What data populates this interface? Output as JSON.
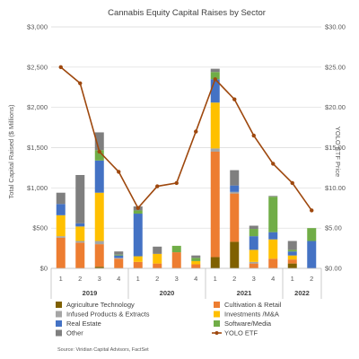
{
  "chart_data": {
    "type": "bar",
    "title": "Cannabis Equity Capital Raises by Sector",
    "ylabel": "Total Capital Raised ($ Millions)",
    "y2label": "YOLO ETF Price",
    "ylim": [
      0,
      3000
    ],
    "y2lim": [
      0,
      30
    ],
    "yticks": [
      "$0",
      "$500",
      "$1,000",
      "$1,500",
      "$2,000",
      "$2,500",
      "$3,000"
    ],
    "y2ticks": [
      "$0.00",
      "$5.00",
      "$10.00",
      "$15.00",
      "$20.00",
      "$25.00",
      "$30.00"
    ],
    "categories": [
      "1",
      "2",
      "3",
      "4",
      "1",
      "2",
      "3",
      "4",
      "1",
      "2",
      "3",
      "4",
      "1",
      "2"
    ],
    "year_groups": [
      {
        "label": "2019",
        "start": 0,
        "end": 3
      },
      {
        "label": "2020",
        "start": 4,
        "end": 7
      },
      {
        "label": "2021",
        "start": 8,
        "end": 11
      },
      {
        "label": "2022",
        "start": 12,
        "end": 13
      }
    ],
    "stacked": true,
    "series": [
      {
        "name": "Agriculture Technology",
        "color": "#7f6000",
        "values": [
          0,
          0,
          20,
          0,
          0,
          0,
          0,
          0,
          140,
          330,
          0,
          0,
          60,
          0
        ]
      },
      {
        "name": "Cultivation & Retail",
        "color": "#ed7d31",
        "values": [
          380,
          320,
          280,
          120,
          80,
          60,
          200,
          50,
          1310,
          600,
          60,
          120,
          50,
          0
        ]
      },
      {
        "name": "Infused Products & Extracts",
        "color": "#a5a5a5",
        "values": [
          20,
          20,
          40,
          10,
          0,
          0,
          0,
          0,
          40,
          20,
          20,
          0,
          0,
          0
        ]
      },
      {
        "name": "Investments /M&A",
        "color": "#ffc000",
        "values": [
          260,
          180,
          600,
          0,
          70,
          120,
          0,
          40,
          570,
          0,
          150,
          240,
          50,
          0
        ]
      },
      {
        "name": "Real Estate",
        "color": "#4472c4",
        "values": [
          140,
          40,
          400,
          30,
          530,
          0,
          0,
          0,
          290,
          80,
          170,
          90,
          50,
          340
        ]
      },
      {
        "name": "Software/Media",
        "color": "#70ad47",
        "values": [
          0,
          0,
          130,
          10,
          40,
          0,
          80,
          40,
          90,
          0,
          90,
          440,
          20,
          160
        ]
      },
      {
        "name": "Other",
        "color": "#7f7f7f",
        "values": [
          140,
          600,
          220,
          40,
          50,
          90,
          0,
          30,
          40,
          190,
          40,
          10,
          110,
          0
        ]
      }
    ],
    "line_series": {
      "name": "YOLO ETF",
      "color": "#9e480e",
      "values": [
        25.0,
        23.0,
        14.5,
        12.0,
        7.5,
        10.2,
        10.6,
        17.0,
        23.5,
        21.0,
        16.5,
        13.0,
        10.6,
        7.2
      ]
    },
    "legend_position": "bottom",
    "source": "Source: Viridian Capital Advisors, FactSet"
  }
}
